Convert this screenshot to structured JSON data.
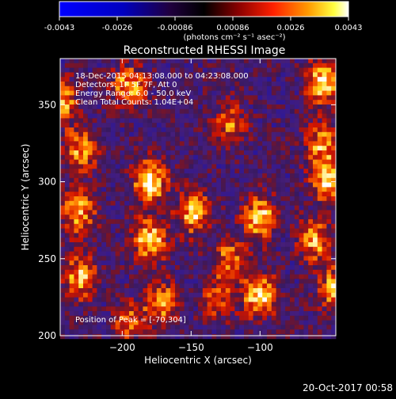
{
  "colorbar": {
    "ticks": [
      "-0.0043",
      "-0.0026",
      "-0.00086",
      "0.00086",
      "0.0026",
      "0.0043"
    ],
    "units": "(photons cm⁻² s⁻¹ asec⁻²)"
  },
  "title": "Reconstructed RHESSI Image",
  "info": {
    "line1": "18-Dec-2015 04:13:08.000 to 04:23:08.000",
    "line2": "Detectors: 1F 5F 7F, Att 0",
    "line3": "Energy Range: 6.0 - 50.0 keV",
    "line4": "Clean      Total Counts: 1.04E+04"
  },
  "peak_label": "Position of Peak = [-70,304]",
  "axes": {
    "xlabel": "Heliocentric X (arcsec)",
    "ylabel": "Heliocentric Y (arcsec)",
    "xticks": [
      "−200",
      "−150",
      "−100"
    ],
    "yticks": [
      "200",
      "250",
      "300",
      "350"
    ]
  },
  "footer": "20-Oct-2017 00:58",
  "colors": {
    "low": "#0000ff",
    "mid": "#000000",
    "high": "#ffffff",
    "hot": "#ff3000"
  },
  "blobs": [
    {
      "x": -195,
      "y": 362,
      "amp": 0.8
    },
    {
      "x": -245,
      "y": 352,
      "amp": 0.85
    },
    {
      "x": -230,
      "y": 320,
      "amp": 0.75
    },
    {
      "x": -180,
      "y": 300,
      "amp": 1.0
    },
    {
      "x": -148,
      "y": 280,
      "amp": 0.85
    },
    {
      "x": -232,
      "y": 280,
      "amp": 0.8
    },
    {
      "x": -180,
      "y": 262,
      "amp": 0.95
    },
    {
      "x": -230,
      "y": 238,
      "amp": 0.8
    },
    {
      "x": -172,
      "y": 222,
      "amp": 0.75
    },
    {
      "x": -195,
      "y": 208,
      "amp": 0.55
    },
    {
      "x": -122,
      "y": 338,
      "amp": 0.6
    },
    {
      "x": -100,
      "y": 276,
      "amp": 0.9
    },
    {
      "x": -122,
      "y": 250,
      "amp": 0.6
    },
    {
      "x": -100,
      "y": 226,
      "amp": 0.95
    },
    {
      "x": -130,
      "y": 224,
      "amp": 0.55
    },
    {
      "x": -55,
      "y": 364,
      "amp": 0.95
    },
    {
      "x": -55,
      "y": 324,
      "amp": 0.7
    },
    {
      "x": -50,
      "y": 300,
      "amp": 0.95
    },
    {
      "x": -60,
      "y": 262,
      "amp": 0.75
    },
    {
      "x": -45,
      "y": 230,
      "amp": 0.8
    }
  ]
}
